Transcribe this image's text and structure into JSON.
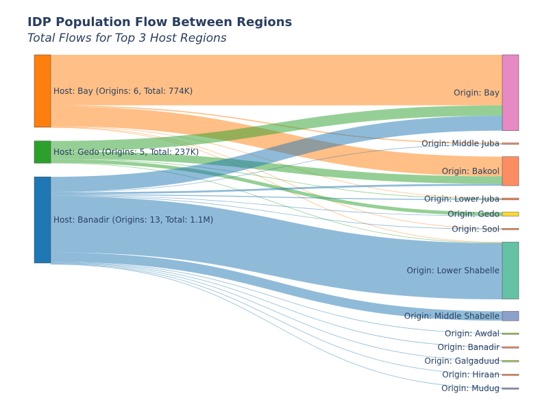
{
  "header": {
    "title": "IDP Population Flow Between Regions",
    "subtitle": "Total Flows for Top 3 Host Regions"
  },
  "chart_data": {
    "type": "sankey",
    "title": "IDP Population Flow Between Regions",
    "subtitle": "Total Flows for Top 3 Host Regions",
    "sources": [
      {
        "id": "bay",
        "label": "Host: Bay (Origins: 6, Total: 774K)",
        "color": "#ff7f0e",
        "total": 774000
      },
      {
        "id": "gedo",
        "label": "Host: Gedo (Origins: 5, Total: 237K)",
        "color": "#2ca02c",
        "total": 237000
      },
      {
        "id": "banadir",
        "label": "Host: Banadir (Origins: 13, Total: 1.1M)",
        "color": "#1f77b4",
        "total": 1100000
      }
    ],
    "targets": [
      {
        "id": "o_bay",
        "label": "Origin: Bay",
        "color": "#e78ac3"
      },
      {
        "id": "o_middle_juba",
        "label": "Origin: Middle Juba",
        "color": "#fc8d62"
      },
      {
        "id": "o_bakool",
        "label": "Origin: Bakool",
        "color": "#fc8d62"
      },
      {
        "id": "o_lower_juba",
        "label": "Origin: Lower Juba",
        "color": "#fc8d62"
      },
      {
        "id": "o_gedo",
        "label": "Origin: Gedo",
        "color": "#ffd92f"
      },
      {
        "id": "o_sool",
        "label": "Origin: Sool",
        "color": "#fc8d62"
      },
      {
        "id": "o_lower_shabelle",
        "label": "Origin: Lower Shabelle",
        "color": "#66c2a5"
      },
      {
        "id": "o_middle_shabelle",
        "label": "Origin: Middle Shabelle",
        "color": "#8da0cb"
      },
      {
        "id": "o_awdal",
        "label": "Origin: Awdal",
        "color": "#a6d854"
      },
      {
        "id": "o_banadir",
        "label": "Origin: Banadir",
        "color": "#fc8d62"
      },
      {
        "id": "o_galgaduud",
        "label": "Origin: Galgaduud",
        "color": "#a6d854"
      },
      {
        "id": "o_hiraan",
        "label": "Origin: Hiraan",
        "color": "#fc8d62"
      },
      {
        "id": "o_mudug",
        "label": "Origin: Mudug",
        "color": "#8da0cb"
      }
    ],
    "links": [
      {
        "source": "bay",
        "target": "o_bay",
        "value": 540000
      },
      {
        "source": "bay",
        "target": "o_middle_juba",
        "value": 12000
      },
      {
        "source": "bay",
        "target": "o_bakool",
        "value": 210000
      },
      {
        "source": "bay",
        "target": "o_lower_juba",
        "value": 4000
      },
      {
        "source": "bay",
        "target": "o_sool",
        "value": 4000
      },
      {
        "source": "bay",
        "target": "o_lower_shabelle",
        "value": 4000
      },
      {
        "source": "gedo",
        "target": "o_bay",
        "value": 110000
      },
      {
        "source": "gedo",
        "target": "o_bakool",
        "value": 80000
      },
      {
        "source": "gedo",
        "target": "o_lower_juba",
        "value": 6000
      },
      {
        "source": "gedo",
        "target": "o_gedo",
        "value": 37000
      },
      {
        "source": "gedo",
        "target": "o_lower_shabelle",
        "value": 4000
      },
      {
        "source": "banadir",
        "target": "o_bay",
        "value": 160000
      },
      {
        "source": "banadir",
        "target": "o_middle_juba",
        "value": 3000
      },
      {
        "source": "banadir",
        "target": "o_bakool",
        "value": 20000
      },
      {
        "source": "banadir",
        "target": "o_lower_juba",
        "value": 10000
      },
      {
        "source": "banadir",
        "target": "o_gedo",
        "value": 4000
      },
      {
        "source": "banadir",
        "target": "o_sool",
        "value": 4000
      },
      {
        "source": "banadir",
        "target": "o_lower_shabelle",
        "value": 600000
      },
      {
        "source": "banadir",
        "target": "o_middle_shabelle",
        "value": 100000
      },
      {
        "source": "banadir",
        "target": "o_awdal",
        "value": 3000
      },
      {
        "source": "banadir",
        "target": "o_banadir",
        "value": 3000
      },
      {
        "source": "banadir",
        "target": "o_galgaduud",
        "value": 4000
      },
      {
        "source": "banadir",
        "target": "o_hiraan",
        "value": 6000
      },
      {
        "source": "banadir",
        "target": "o_mudug",
        "value": 4000
      }
    ]
  }
}
